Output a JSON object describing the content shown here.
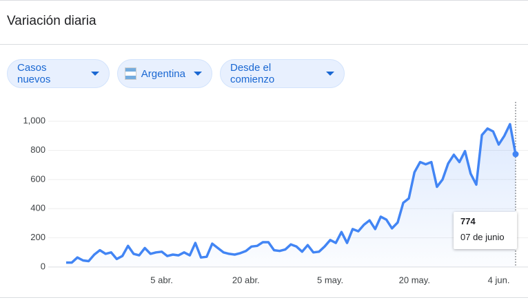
{
  "header": {
    "title": "Variación diaria"
  },
  "filters": [
    "Casos nuevos",
    "Argentina",
    "Desde el comienzo"
  ],
  "chart_data": {
    "type": "line",
    "categories": [
      null,
      null,
      null,
      null,
      null,
      null,
      null,
      null,
      null,
      null,
      null,
      null,
      null,
      null,
      null,
      null,
      null,
      "5 abr.",
      null,
      null,
      null,
      null,
      null,
      null,
      null,
      null,
      null,
      null,
      null,
      null,
      null,
      null,
      "20 abr.",
      null,
      null,
      null,
      null,
      null,
      null,
      null,
      null,
      null,
      null,
      null,
      null,
      null,
      null,
      "5 may.",
      null,
      null,
      null,
      null,
      null,
      null,
      null,
      null,
      null,
      null,
      null,
      null,
      null,
      null,
      "20 may.",
      null,
      null,
      null,
      null,
      null,
      null,
      null,
      null,
      null,
      null,
      null,
      null,
      null,
      null,
      "4 jun.",
      null,
      null,
      null
    ],
    "values": [
      30,
      30,
      65,
      45,
      40,
      85,
      115,
      90,
      100,
      55,
      75,
      145,
      90,
      80,
      130,
      90,
      100,
      105,
      75,
      85,
      80,
      100,
      80,
      165,
      65,
      70,
      160,
      130,
      100,
      90,
      85,
      95,
      110,
      140,
      145,
      170,
      170,
      115,
      110,
      120,
      155,
      140,
      105,
      150,
      100,
      105,
      140,
      185,
      165,
      240,
      165,
      260,
      245,
      290,
      320,
      260,
      345,
      325,
      265,
      305,
      440,
      470,
      650,
      720,
      705,
      720,
      550,
      600,
      710,
      770,
      720,
      795,
      640,
      565,
      905,
      950,
      930,
      840,
      900,
      980,
      774
    ],
    "color": "#4285f4",
    "ylim": [
      0,
      1100
    ],
    "yticks": [
      0,
      200,
      400,
      600,
      800,
      {
        "value": 1000,
        "label": "1,000"
      }
    ],
    "grid": true,
    "tooltip": {
      "label": "07 de junio"
    }
  }
}
